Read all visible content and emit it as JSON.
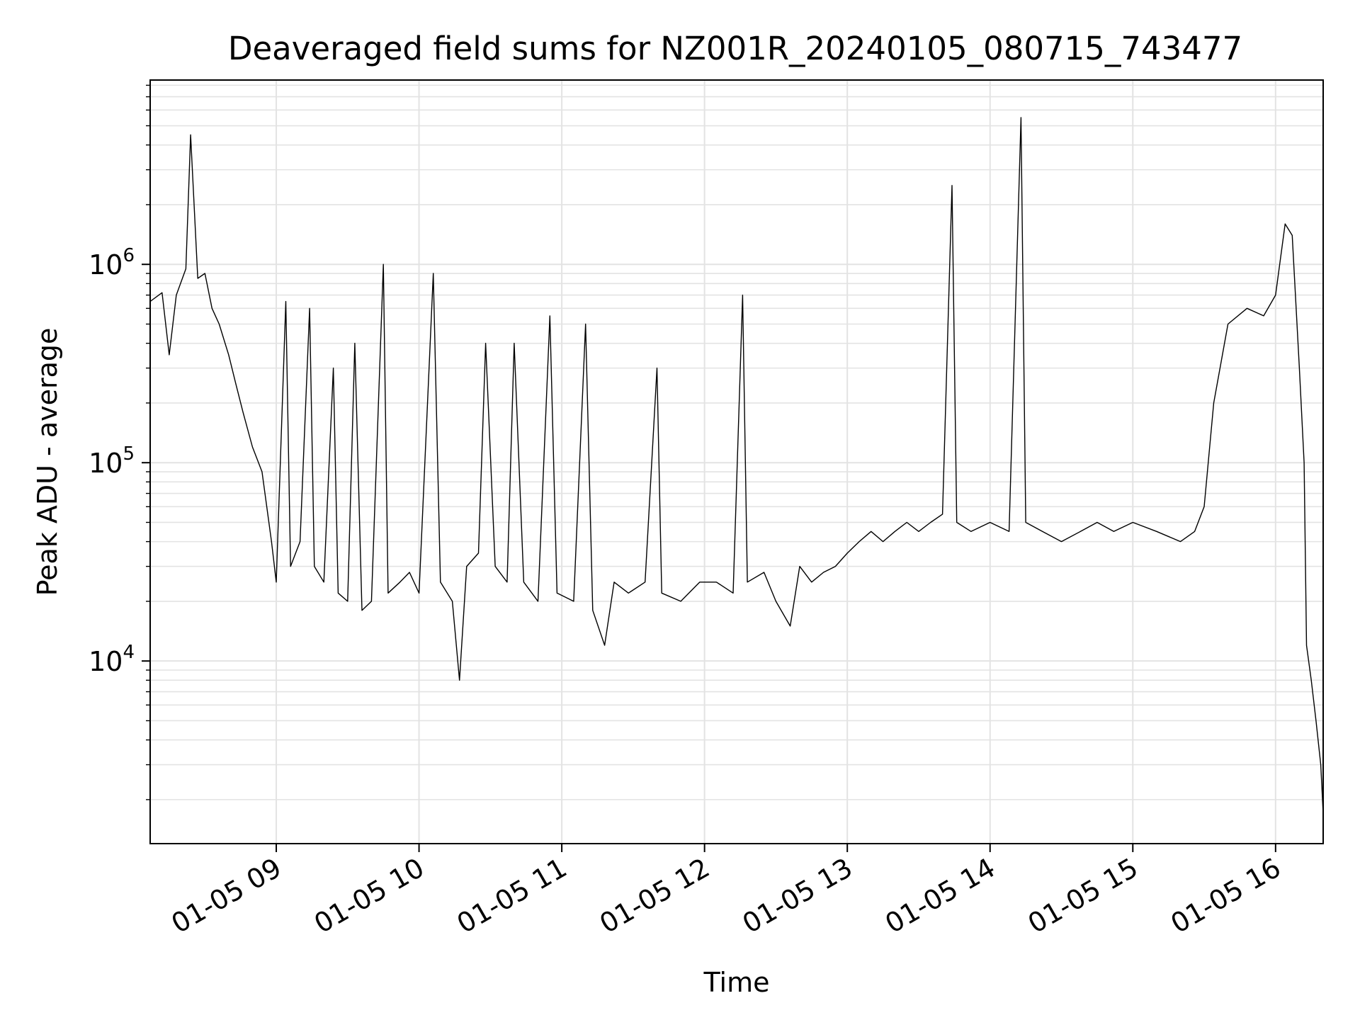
{
  "chart_data": {
    "type": "line",
    "title": "Deaveraged field sums for NZ001R_20240105_080715_743477",
    "xlabel": "Time",
    "ylabel": "Peak ADU - average",
    "yscale": "log",
    "grid": true,
    "line_color": "#000000",
    "xlim": [
      "2024-01-05 08:07",
      "2024-01-05 16:20"
    ],
    "ylim": [
      1200,
      8500000
    ],
    "x_ticks": [
      {
        "value": "2024-01-05 09:00",
        "label": "01-05 09"
      },
      {
        "value": "2024-01-05 10:00",
        "label": "01-05 10"
      },
      {
        "value": "2024-01-05 11:00",
        "label": "01-05 11"
      },
      {
        "value": "2024-01-05 12:00",
        "label": "01-05 12"
      },
      {
        "value": "2024-01-05 13:00",
        "label": "01-05 13"
      },
      {
        "value": "2024-01-05 14:00",
        "label": "01-05 14"
      },
      {
        "value": "2024-01-05 15:00",
        "label": "01-05 15"
      },
      {
        "value": "2024-01-05 16:00",
        "label": "01-05 16"
      }
    ],
    "y_ticks": [
      {
        "value": 10000,
        "base": "10",
        "exp": "4"
      },
      {
        "value": 100000,
        "base": "10",
        "exp": "5"
      },
      {
        "value": 1000000,
        "base": "10",
        "exp": "6"
      }
    ],
    "series": [
      {
        "points": [
          [
            "2024-01-05 08:07",
            650000
          ],
          [
            "2024-01-05 08:12",
            720000
          ],
          [
            "2024-01-05 08:15",
            350000
          ],
          [
            "2024-01-05 08:18",
            700000
          ],
          [
            "2024-01-05 08:22",
            950000
          ],
          [
            "2024-01-05 08:24",
            4500000
          ],
          [
            "2024-01-05 08:27",
            850000
          ],
          [
            "2024-01-05 08:30",
            900000
          ],
          [
            "2024-01-05 08:33",
            600000
          ],
          [
            "2024-01-05 08:36",
            500000
          ],
          [
            "2024-01-05 08:40",
            350000
          ],
          [
            "2024-01-05 08:43",
            250000
          ],
          [
            "2024-01-05 08:46",
            180000
          ],
          [
            "2024-01-05 08:50",
            120000
          ],
          [
            "2024-01-05 08:54",
            90000
          ],
          [
            "2024-01-05 08:58",
            40000
          ],
          [
            "2024-01-05 09:00",
            25000
          ],
          [
            "2024-01-05 09:04",
            650000
          ],
          [
            "2024-01-05 09:06",
            30000
          ],
          [
            "2024-01-05 09:10",
            40000
          ],
          [
            "2024-01-05 09:14",
            600000
          ],
          [
            "2024-01-05 09:16",
            30000
          ],
          [
            "2024-01-05 09:20",
            25000
          ],
          [
            "2024-01-05 09:24",
            300000
          ],
          [
            "2024-01-05 09:26",
            22000
          ],
          [
            "2024-01-05 09:30",
            20000
          ],
          [
            "2024-01-05 09:33",
            400000
          ],
          [
            "2024-01-05 09:36",
            18000
          ],
          [
            "2024-01-05 09:40",
            20000
          ],
          [
            "2024-01-05 09:45",
            1000000
          ],
          [
            "2024-01-05 09:47",
            22000
          ],
          [
            "2024-01-05 09:52",
            25000
          ],
          [
            "2024-01-05 09:56",
            28000
          ],
          [
            "2024-01-05 10:00",
            22000
          ],
          [
            "2024-01-05 10:06",
            900000
          ],
          [
            "2024-01-05 10:09",
            25000
          ],
          [
            "2024-01-05 10:14",
            20000
          ],
          [
            "2024-01-05 10:17",
            8000
          ],
          [
            "2024-01-05 10:20",
            30000
          ],
          [
            "2024-01-05 10:25",
            35000
          ],
          [
            "2024-01-05 10:28",
            400000
          ],
          [
            "2024-01-05 10:32",
            30000
          ],
          [
            "2024-01-05 10:37",
            25000
          ],
          [
            "2024-01-05 10:40",
            400000
          ],
          [
            "2024-01-05 10:44",
            25000
          ],
          [
            "2024-01-05 10:50",
            20000
          ],
          [
            "2024-01-05 10:55",
            550000
          ],
          [
            "2024-01-05 10:58",
            22000
          ],
          [
            "2024-01-05 11:05",
            20000
          ],
          [
            "2024-01-05 11:10",
            500000
          ],
          [
            "2024-01-05 11:13",
            18000
          ],
          [
            "2024-01-05 11:18",
            12000
          ],
          [
            "2024-01-05 11:22",
            25000
          ],
          [
            "2024-01-05 11:28",
            22000
          ],
          [
            "2024-01-05 11:35",
            25000
          ],
          [
            "2024-01-05 11:40",
            300000
          ],
          [
            "2024-01-05 11:42",
            22000
          ],
          [
            "2024-01-05 11:50",
            20000
          ],
          [
            "2024-01-05 11:58",
            25000
          ],
          [
            "2024-01-05 12:05",
            25000
          ],
          [
            "2024-01-05 12:12",
            22000
          ],
          [
            "2024-01-05 12:16",
            700000
          ],
          [
            "2024-01-05 12:18",
            25000
          ],
          [
            "2024-01-05 12:25",
            28000
          ],
          [
            "2024-01-05 12:30",
            20000
          ],
          [
            "2024-01-05 12:36",
            15000
          ],
          [
            "2024-01-05 12:40",
            30000
          ],
          [
            "2024-01-05 12:45",
            25000
          ],
          [
            "2024-01-05 12:50",
            28000
          ],
          [
            "2024-01-05 12:55",
            30000
          ],
          [
            "2024-01-05 13:00",
            35000
          ],
          [
            "2024-01-05 13:05",
            40000
          ],
          [
            "2024-01-05 13:10",
            45000
          ],
          [
            "2024-01-05 13:15",
            40000
          ],
          [
            "2024-01-05 13:20",
            45000
          ],
          [
            "2024-01-05 13:25",
            50000
          ],
          [
            "2024-01-05 13:30",
            45000
          ],
          [
            "2024-01-05 13:35",
            50000
          ],
          [
            "2024-01-05 13:40",
            55000
          ],
          [
            "2024-01-05 13:44",
            2500000
          ],
          [
            "2024-01-05 13:46",
            50000
          ],
          [
            "2024-01-05 13:52",
            45000
          ],
          [
            "2024-01-05 14:00",
            50000
          ],
          [
            "2024-01-05 14:08",
            45000
          ],
          [
            "2024-01-05 14:13",
            5500000
          ],
          [
            "2024-01-05 14:15",
            50000
          ],
          [
            "2024-01-05 14:22",
            45000
          ],
          [
            "2024-01-05 14:30",
            40000
          ],
          [
            "2024-01-05 14:38",
            45000
          ],
          [
            "2024-01-05 14:45",
            50000
          ],
          [
            "2024-01-05 14:52",
            45000
          ],
          [
            "2024-01-05 15:00",
            50000
          ],
          [
            "2024-01-05 15:10",
            45000
          ],
          [
            "2024-01-05 15:20",
            40000
          ],
          [
            "2024-01-05 15:26",
            45000
          ],
          [
            "2024-01-05 15:30",
            60000
          ],
          [
            "2024-01-05 15:34",
            200000
          ],
          [
            "2024-01-05 15:40",
            500000
          ],
          [
            "2024-01-05 15:48",
            600000
          ],
          [
            "2024-01-05 15:55",
            550000
          ],
          [
            "2024-01-05 16:00",
            700000
          ],
          [
            "2024-01-05 16:04",
            1600000
          ],
          [
            "2024-01-05 16:07",
            1400000
          ],
          [
            "2024-01-05 16:10",
            300000
          ],
          [
            "2024-01-05 16:12",
            100000
          ],
          [
            "2024-01-05 16:13",
            12000
          ],
          [
            "2024-01-05 16:15",
            8000
          ],
          [
            "2024-01-05 16:17",
            5000
          ],
          [
            "2024-01-05 16:19",
            3000
          ],
          [
            "2024-01-05 16:20",
            1700
          ]
        ]
      }
    ]
  }
}
